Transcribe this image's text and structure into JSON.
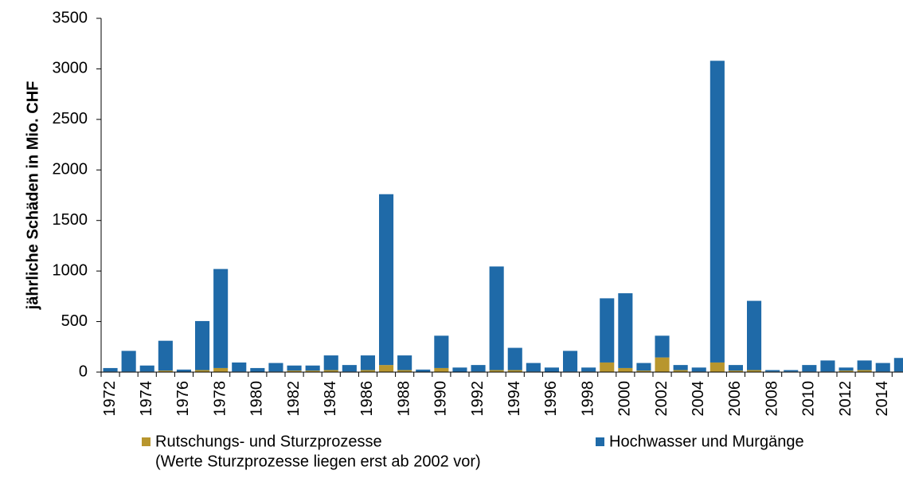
{
  "chart_data": {
    "type": "stacked_bar",
    "y_label": "jährliche Schäden in Mio. CHF",
    "categories": [
      "1972",
      null,
      "1974",
      null,
      "1976",
      null,
      "1978",
      null,
      "1980",
      null,
      "1982",
      null,
      "1984",
      null,
      "1986",
      null,
      "1988",
      null,
      "1990",
      null,
      "1992",
      null,
      "1994",
      null,
      "1996",
      null,
      "1998",
      null,
      "2000",
      null,
      "2002",
      null,
      "2004",
      null,
      "2006",
      null,
      "2008",
      null,
      "2010",
      null,
      "2012",
      null,
      "2014",
      null
    ],
    "series": [
      {
        "name": "Rutschungs- und Sturzprozesse",
        "legend_note": "(Werte Sturzprozesse liegen erst ab 2002 vor)",
        "color": "#b8962e",
        "values": [
          5,
          5,
          5,
          15,
          3,
          20,
          40,
          5,
          3,
          5,
          15,
          15,
          20,
          5,
          20,
          70,
          20,
          3,
          40,
          3,
          5,
          20,
          20,
          5,
          3,
          5,
          5,
          95,
          40,
          15,
          145,
          20,
          5,
          95,
          15,
          20,
          5,
          5,
          5,
          5,
          15,
          20,
          5,
          5
        ]
      },
      {
        "name": "Hochwasser und Murgänge",
        "color": "#1f6aa8",
        "values": [
          35,
          205,
          60,
          295,
          22,
          485,
          980,
          90,
          37,
          85,
          50,
          50,
          145,
          65,
          145,
          1690,
          145,
          22,
          320,
          42,
          65,
          1025,
          220,
          85,
          42,
          205,
          40,
          635,
          740,
          75,
          215,
          50,
          40,
          2985,
          55,
          685,
          15,
          15,
          65,
          110,
          30,
          95,
          85,
          135
        ]
      }
    ],
    "ylim": [
      0,
      3500
    ],
    "yticks": [
      0,
      500,
      1000,
      1500,
      2000,
      2500,
      3000,
      3500
    ]
  }
}
